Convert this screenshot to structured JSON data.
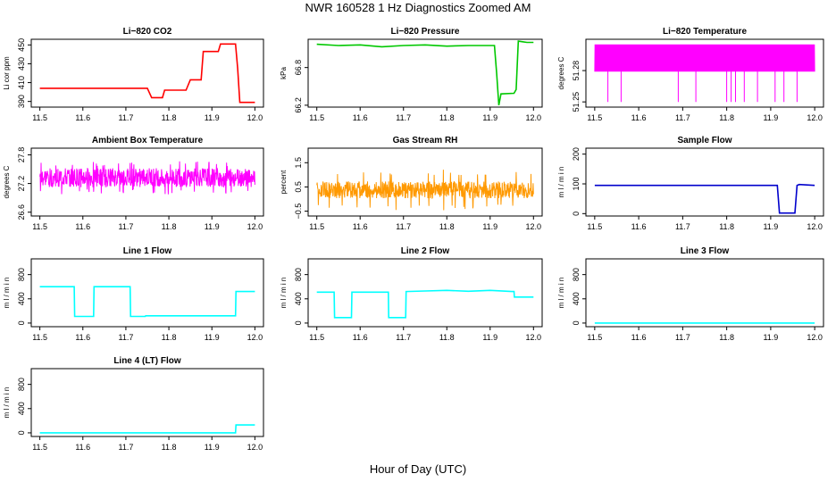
{
  "page": {
    "title": "NWR  160528  1 Hz Diagnostics Zoomed AM",
    "xlabel": "Hour of Day (UTC)"
  },
  "chart_data": [
    {
      "id": "co2",
      "type": "line",
      "title": "Li−820 CO2",
      "ylabel": "Li cor ppm",
      "xlim": [
        11.48,
        12.02
      ],
      "ylim": [
        384,
        456
      ],
      "xticks": [
        "11.5",
        "11.6",
        "11.7",
        "11.8",
        "11.9",
        "12.0"
      ],
      "yticks": [
        "390",
        "410",
        "430",
        "450"
      ],
      "color": "#ff0000",
      "x": [
        11.5,
        11.6,
        11.7,
        11.75,
        11.76,
        11.785,
        11.79,
        11.81,
        11.84,
        11.85,
        11.875,
        11.88,
        11.915,
        11.92,
        11.955,
        11.96,
        11.965,
        12.0
      ],
      "y": [
        404,
        404,
        404,
        404,
        394,
        394,
        402,
        402,
        402,
        413,
        413,
        443,
        443,
        451,
        451,
        425,
        389,
        389
      ]
    },
    {
      "id": "pressure",
      "type": "line",
      "title": "Li−820 Pressure",
      "ylabel": "kPa",
      "xlim": [
        11.48,
        12.02
      ],
      "ylim": [
        66.17,
        67.25
      ],
      "xticks": [
        "11.5",
        "11.6",
        "11.7",
        "11.8",
        "11.9",
        "12.0"
      ],
      "yticks": [
        "66.2",
        "66.8"
      ],
      "color": "#00c800",
      "x": [
        11.5,
        11.55,
        11.6,
        11.65,
        11.7,
        11.75,
        11.8,
        11.85,
        11.9,
        11.91,
        11.915,
        11.92,
        11.925,
        11.955,
        11.96,
        11.965,
        11.975,
        11.985,
        12.0
      ],
      "y": [
        67.17,
        67.15,
        67.16,
        67.13,
        67.15,
        67.16,
        67.14,
        67.15,
        67.15,
        67.15,
        66.7,
        66.2,
        66.38,
        66.39,
        66.45,
        67.22,
        67.21,
        67.2,
        67.2
      ]
    },
    {
      "id": "temperature",
      "type": "line",
      "title": "Li−820 Temperature",
      "ylabel": "degrees C",
      "xlim": [
        11.48,
        12.02
      ],
      "ylim": [
        51.245,
        51.31
      ],
      "xticks": [
        "11.5",
        "11.6",
        "11.7",
        "11.8",
        "11.9",
        "12.0"
      ],
      "yticks": [
        "51.25",
        "51.28"
      ],
      "color": "#ff00ff",
      "noise": {
        "low": 51.279,
        "high": 51.305,
        "spike_low": 51.25,
        "spikes": [
          11.53,
          11.56,
          11.69,
          11.73,
          11.8,
          11.81,
          11.82,
          11.84,
          11.87,
          11.91,
          11.93,
          11.96
        ]
      }
    },
    {
      "id": "box-temp",
      "type": "line",
      "title": "Ambient Box Temperature",
      "ylabel": "degrees C",
      "xlim": [
        11.48,
        12.02
      ],
      "ylim": [
        26.52,
        27.94
      ],
      "xticks": [
        "11.5",
        "11.6",
        "11.7",
        "11.8",
        "11.9",
        "12.0"
      ],
      "yticks": [
        "26.6",
        "27.2",
        "27.8"
      ],
      "color": "#ff00ff",
      "noise": {
        "center": 27.32,
        "spread": 0.2,
        "spike": 0.35
      }
    },
    {
      "id": "rh",
      "type": "line",
      "title": "Gas Stream RH",
      "ylabel": "percent",
      "xlim": [
        11.48,
        12.02
      ],
      "ylim": [
        -0.7,
        2.1
      ],
      "xticks": [
        "11.5",
        "11.6",
        "11.7",
        "11.8",
        "11.9",
        "12.0"
      ],
      "yticks": [
        "−0.5",
        "0.5",
        "1.5"
      ],
      "ytick_values": [
        -0.5,
        0.5,
        1.5
      ],
      "color": "#ff9900",
      "noise": {
        "center": 0.38,
        "spread": 0.35,
        "spike": 0.85
      }
    },
    {
      "id": "sample-flow",
      "type": "line",
      "title": "Sample Flow",
      "ylabel": "m l / m i n",
      "xlim": [
        11.48,
        12.02
      ],
      "ylim": [
        -8,
        220
      ],
      "xticks": [
        "11.5",
        "11.6",
        "11.7",
        "11.8",
        "11.9",
        "12.0"
      ],
      "yticks": [
        "0",
        "100",
        "200"
      ],
      "color": "#0000cc",
      "x": [
        11.5,
        11.6,
        11.7,
        11.8,
        11.9,
        11.915,
        11.92,
        11.955,
        11.96,
        11.965,
        12.0
      ],
      "y": [
        95,
        95,
        95,
        95,
        95,
        95,
        2,
        2,
        95,
        98,
        95
      ]
    },
    {
      "id": "line1",
      "type": "line",
      "title": "Line 1 Flow",
      "ylabel": "m l / m i n",
      "xlim": [
        11.48,
        12.02
      ],
      "ylim": [
        -60,
        1060
      ],
      "xticks": [
        "11.5",
        "11.6",
        "11.7",
        "11.8",
        "11.9",
        "12.0"
      ],
      "yticks": [
        "0",
        "400",
        "800"
      ],
      "color": "#00ffff",
      "x": [
        11.5,
        11.58,
        11.581,
        11.625,
        11.626,
        11.71,
        11.711,
        11.745,
        11.746,
        11.955,
        11.956,
        12.0
      ],
      "y": [
        600,
        600,
        110,
        110,
        600,
        600,
        110,
        110,
        120,
        120,
        520,
        520
      ]
    },
    {
      "id": "line2",
      "type": "line",
      "title": "Line 2 Flow",
      "ylabel": "m l / m i n",
      "xlim": [
        11.48,
        12.02
      ],
      "ylim": [
        -60,
        1060
      ],
      "xticks": [
        "11.5",
        "11.6",
        "11.7",
        "11.8",
        "11.9",
        "12.0"
      ],
      "yticks": [
        "0",
        "400",
        "800"
      ],
      "color": "#00ffff",
      "x": [
        11.5,
        11.54,
        11.541,
        11.58,
        11.581,
        11.665,
        11.666,
        11.705,
        11.706,
        11.75,
        11.8,
        11.85,
        11.9,
        11.95,
        11.955,
        11.956,
        12.0
      ],
      "y": [
        510,
        510,
        90,
        90,
        510,
        510,
        90,
        90,
        520,
        530,
        540,
        525,
        540,
        520,
        520,
        430,
        430
      ]
    },
    {
      "id": "line3",
      "type": "line",
      "title": "Line 3 Flow",
      "ylabel": "m l / m i n",
      "xlim": [
        11.48,
        12.02
      ],
      "ylim": [
        -60,
        1060
      ],
      "xticks": [
        "11.5",
        "11.6",
        "11.7",
        "11.8",
        "11.9",
        "12.0"
      ],
      "yticks": [
        "0",
        "400",
        "800"
      ],
      "color": "#00ffff",
      "x": [
        11.5,
        12.0
      ],
      "y": [
        0,
        0
      ]
    },
    {
      "id": "line4",
      "type": "line",
      "title": "Line 4 (LT) Flow",
      "ylabel": "m l / m i n",
      "xlim": [
        11.48,
        12.02
      ],
      "ylim": [
        -60,
        1060
      ],
      "xticks": [
        "11.5",
        "11.6",
        "11.7",
        "11.8",
        "11.9",
        "12.0"
      ],
      "yticks": [
        "0",
        "400",
        "800"
      ],
      "color": "#00ffff",
      "x": [
        11.5,
        11.955,
        11.956,
        12.0
      ],
      "y": [
        0,
        0,
        130,
        130
      ]
    }
  ]
}
